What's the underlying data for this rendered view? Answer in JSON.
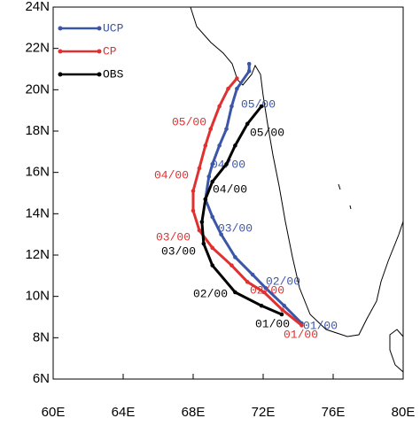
{
  "chart_data": {
    "type": "line",
    "xlim": [
      60,
      80
    ],
    "ylim": [
      6,
      24
    ],
    "xticks": [
      {
        "value": 60,
        "label": "60E"
      },
      {
        "value": 64,
        "label": "64E"
      },
      {
        "value": 68,
        "label": "68E"
      },
      {
        "value": 72,
        "label": "72E"
      },
      {
        "value": 76,
        "label": "76E"
      },
      {
        "value": 80,
        "label": "80E"
      }
    ],
    "yticks": [
      {
        "value": 6,
        "label": "6N"
      },
      {
        "value": 8,
        "label": "8N"
      },
      {
        "value": 10,
        "label": "10N"
      },
      {
        "value": 12,
        "label": "12N"
      },
      {
        "value": 14,
        "label": "14N"
      },
      {
        "value": 16,
        "label": "16N"
      },
      {
        "value": 18,
        "label": "18N"
      },
      {
        "value": 20,
        "label": "20N"
      },
      {
        "value": 22,
        "label": "22N"
      },
      {
        "value": 24,
        "label": "24N"
      }
    ],
    "legend": "upper left",
    "series": [
      {
        "name": "UCP",
        "color": "#3b55a8",
        "x": [
          74.2,
          73.2,
          72.15,
          71.4,
          70.4,
          69.6,
          69.1,
          68.7,
          68.9,
          69.1,
          69.5,
          69.9,
          70.2,
          70.5,
          71.2,
          71.2
        ],
        "values": [
          8.7,
          9.55,
          10.4,
          11.05,
          11.9,
          13.0,
          13.85,
          14.7,
          15.8,
          16.4,
          17.3,
          18.1,
          19.2,
          20.05,
          20.9,
          21.25
        ],
        "annotations": [
          "01/00",
          "02/00",
          "03/00",
          "04/00",
          "05/00"
        ]
      },
      {
        "name": "CP",
        "color": "#e03030",
        "x": [
          74.2,
          73.1,
          72.05,
          71.1,
          70.2,
          69.1,
          68.35,
          68.0,
          68.0,
          68.35,
          68.7,
          69.0,
          69.5,
          70.0,
          70.5
        ],
        "values": [
          8.6,
          9.35,
          10.2,
          10.7,
          11.5,
          12.35,
          13.2,
          14.15,
          15.1,
          16.2,
          17.3,
          18.1,
          19.2,
          20.05,
          20.55
        ],
        "annotations": [
          "01/00",
          "02/00",
          "03/00",
          "04/00",
          "05/00"
        ]
      },
      {
        "name": "OBS",
        "color": "#000000",
        "x": [
          73.06,
          71.9,
          70.4,
          69.1,
          68.6,
          68.5,
          68.7,
          69.1,
          69.9,
          70.4,
          71.1,
          71.9
        ],
        "values": [
          9.13,
          9.55,
          10.2,
          11.5,
          12.55,
          13.6,
          14.7,
          15.55,
          16.4,
          17.3,
          18.35,
          19.2
        ],
        "annotations": [
          "01/00",
          "02/00",
          "03/00",
          "04/00",
          "05/00"
        ]
      }
    ]
  }
}
